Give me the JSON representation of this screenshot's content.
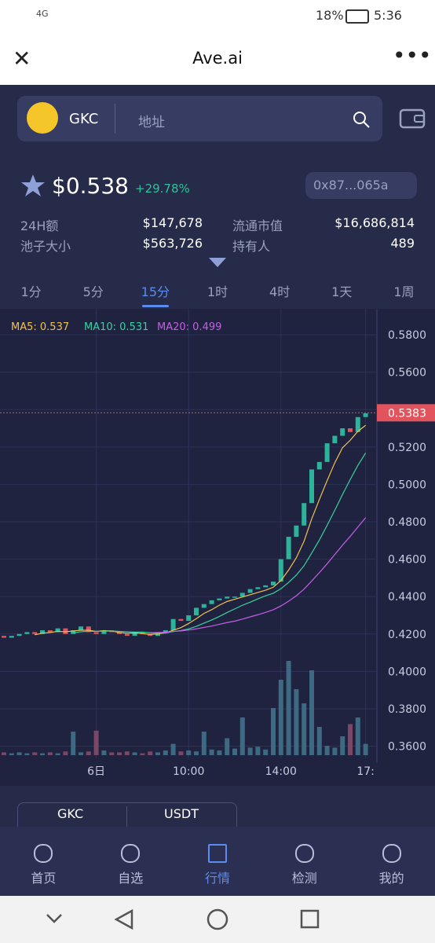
{
  "status_bar": {
    "network": "4G",
    "battery": "18%",
    "time": "5:36"
  },
  "header": {
    "title": "Ave.ai"
  },
  "search": {
    "token": "GKC",
    "placeholder": "地址"
  },
  "token": {
    "price": "$0.538",
    "change": "+29.78%",
    "address": "0x87...065a"
  },
  "stats": [
    {
      "label": "24H额",
      "value": "$147,678"
    },
    {
      "label": "流通市值",
      "value": "$16,686,814"
    },
    {
      "label": "池子大小",
      "value": "$563,726"
    },
    {
      "label": "持有人",
      "value": "489"
    }
  ],
  "tabs": [
    "1分",
    "5分",
    "15分",
    "1时",
    "4时",
    "1天",
    "1周"
  ],
  "active_tab": 2,
  "chart_data": {
    "type": "candlestick",
    "legend": [
      {
        "label": "MA5: 0.537",
        "color": "#f2c14e"
      },
      {
        "label": "MA10: 0.531",
        "color": "#36d3a0"
      },
      {
        "label": "MA20: 0.499",
        "color": "#c65ee6"
      }
    ],
    "categories": [
      null,
      null,
      null,
      null,
      null,
      null,
      null,
      null,
      null,
      null,
      null,
      null,
      "6日",
      null,
      null,
      null,
      null,
      null,
      null,
      null,
      null,
      null,
      null,
      null,
      "10:00",
      null,
      null,
      null,
      null,
      null,
      null,
      null,
      null,
      null,
      null,
      null,
      "14:00",
      null,
      null,
      null,
      null,
      null,
      null,
      null,
      null,
      null,
      null,
      "17:"
    ],
    "open": [
      0.419,
      0.418,
      0.419,
      0.42,
      0.421,
      0.42,
      0.422,
      0.421,
      0.423,
      0.42,
      0.422,
      0.424,
      0.421,
      0.42,
      0.422,
      0.421,
      0.42,
      0.419,
      0.421,
      0.42,
      0.419,
      0.421,
      0.422,
      0.428,
      0.427,
      0.43,
      0.434,
      0.436,
      0.438,
      0.439,
      0.44,
      0.44,
      0.442,
      0.444,
      0.445,
      0.446,
      0.448,
      0.46,
      0.472,
      0.478,
      0.49,
      0.508,
      0.512,
      0.522,
      0.526,
      0.53,
      0.528,
      0.536
    ],
    "close": [
      0.418,
      0.419,
      0.42,
      0.421,
      0.42,
      0.422,
      0.421,
      0.423,
      0.42,
      0.422,
      0.424,
      0.421,
      0.42,
      0.422,
      0.421,
      0.42,
      0.419,
      0.421,
      0.42,
      0.419,
      0.421,
      0.422,
      0.428,
      0.427,
      0.43,
      0.434,
      0.436,
      0.438,
      0.439,
      0.44,
      0.44,
      0.442,
      0.444,
      0.445,
      0.446,
      0.448,
      0.46,
      0.472,
      0.478,
      0.49,
      0.508,
      0.512,
      0.522,
      0.526,
      0.53,
      0.528,
      0.536,
      0.538
    ],
    "volume": [
      3,
      2,
      3,
      2,
      3,
      2,
      3,
      2,
      4,
      25,
      3,
      4,
      26,
      5,
      3,
      3,
      4,
      3,
      2,
      4,
      3,
      5,
      12,
      4,
      5,
      4,
      25,
      6,
      5,
      18,
      7,
      40,
      8,
      9,
      6,
      50,
      80,
      100,
      70,
      55,
      90,
      30,
      10,
      8,
      20,
      33,
      40,
      12
    ],
    "ylim": [
      0.3535,
      0.5939
    ],
    "yticks": [
      {
        "value": 0.58,
        "label": "0.5800"
      },
      {
        "value": 0.56,
        "label": "0.5600"
      },
      {
        "value": 0.54,
        "label": "0.5400"
      },
      {
        "value": 0.52,
        "label": "0.5200"
      },
      {
        "value": 0.5,
        "label": "0.5000"
      },
      {
        "value": 0.48,
        "label": "0.4800"
      },
      {
        "value": 0.46,
        "label": "0.4600"
      },
      {
        "value": 0.44,
        "label": "0.4400"
      },
      {
        "value": 0.42,
        "label": "0.4200"
      },
      {
        "value": 0.4,
        "label": "0.4000"
      },
      {
        "value": 0.38,
        "label": "0.3800"
      },
      {
        "value": 0.36,
        "label": "0.3600"
      }
    ],
    "last_price": {
      "value": 0.5383,
      "label": "0.5383"
    },
    "up_color": "#2db39a",
    "down_color": "#e2545d"
  },
  "pair": [
    "GKC",
    "USDT"
  ],
  "nav": [
    "首页",
    "自选",
    "行情",
    "检测",
    "我的"
  ],
  "active_nav": 2
}
